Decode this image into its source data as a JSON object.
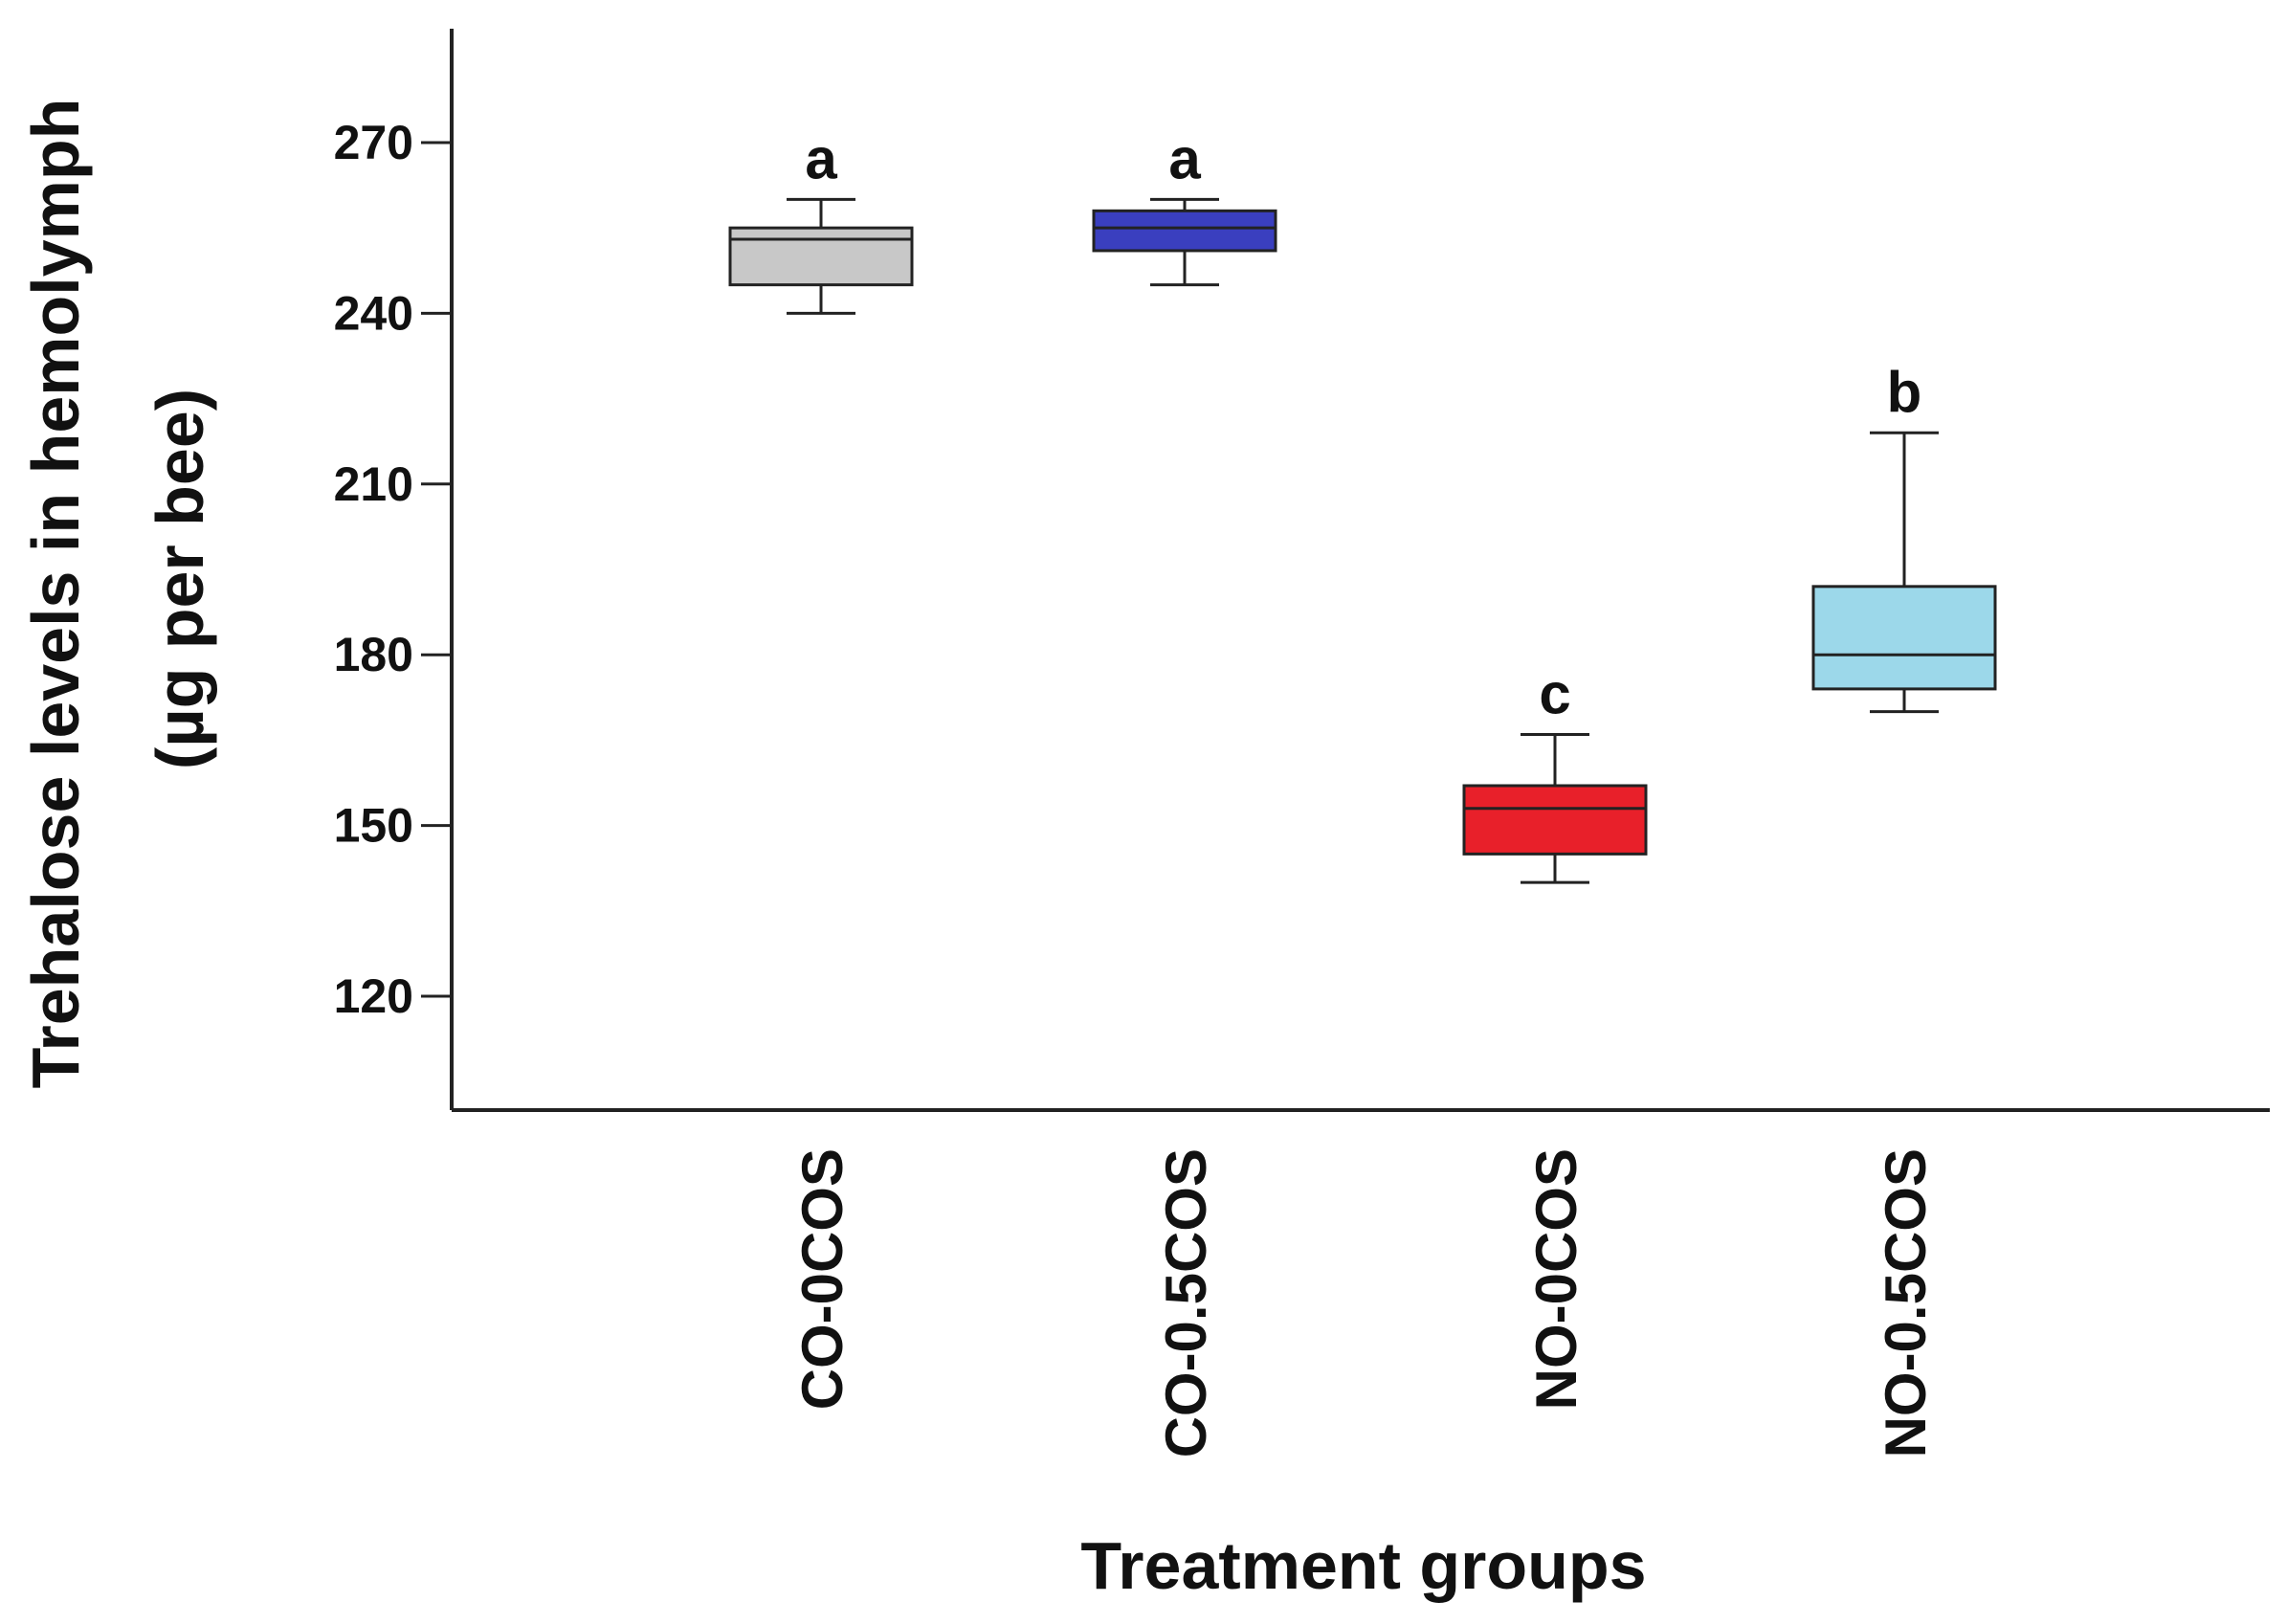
{
  "chart_data": {
    "type": "box",
    "title": "",
    "ylabel": "Trehalose levels in hemolymph",
    "ylabel_unit": "(µg per bee)",
    "xlabel": "Treatment groups",
    "ylim": [
      100,
      290
    ],
    "yticks": [
      120,
      150,
      180,
      210,
      240,
      270
    ],
    "grid": false,
    "categories": [
      "CO-0COS",
      "CO-0.5COS",
      "NO-0COS",
      "NO-0.5COS"
    ],
    "boxes": [
      {
        "category": "CO-0COS",
        "min": 240,
        "q1": 245,
        "median": 253,
        "q3": 255,
        "max": 260,
        "significance": "a",
        "color": "#c8c8c8"
      },
      {
        "category": "CO-0.5COS",
        "min": 245,
        "q1": 251,
        "median": 255,
        "q3": 258,
        "max": 260,
        "significance": "a",
        "color": "#3a3fbf"
      },
      {
        "category": "NO-0COS",
        "min": 140,
        "q1": 145,
        "median": 153,
        "q3": 157,
        "max": 166,
        "significance": "c",
        "color": "#e8202a"
      },
      {
        "category": "NO-0.5COS",
        "min": 170,
        "q1": 174,
        "median": 180,
        "q3": 192,
        "max": 219,
        "significance": "b",
        "color": "#9cd8ea"
      }
    ]
  }
}
